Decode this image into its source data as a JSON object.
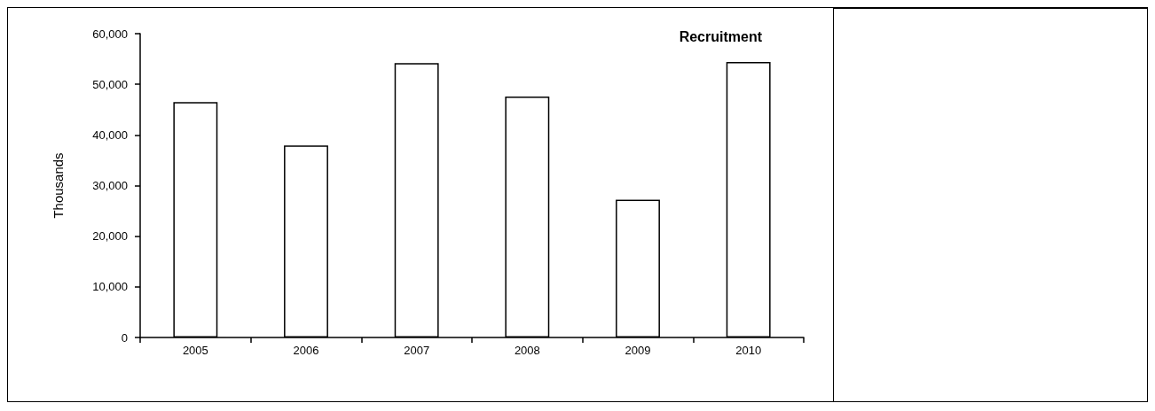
{
  "chart_data": {
    "type": "bar",
    "title": "Recruitment",
    "ylabel": "Thousands",
    "categories": [
      "2005",
      "2006",
      "2007",
      "2008",
      "2009",
      "2010"
    ],
    "values": [
      46500,
      37900,
      54200,
      47600,
      27200,
      54400
    ],
    "color": "#ffffff",
    "ylim": [
      0,
      60000
    ],
    "yticks": [
      {
        "value": 0,
        "label": "0"
      },
      {
        "value": 10000,
        "label": "10,000"
      },
      {
        "value": 20000,
        "label": "20,000"
      },
      {
        "value": 30000,
        "label": "30,000"
      },
      {
        "value": 40000,
        "label": "40,000"
      },
      {
        "value": 50000,
        "label": "50,000"
      },
      {
        "value": 60000,
        "label": "60,000"
      }
    ],
    "grid": false
  }
}
